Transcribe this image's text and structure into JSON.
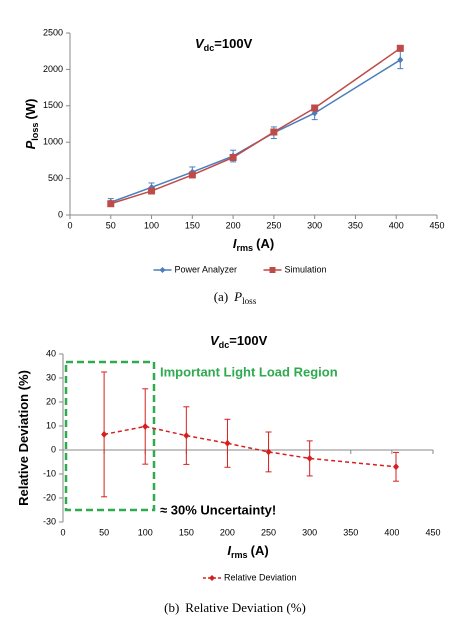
{
  "chart_data": [
    {
      "type": "line",
      "title": {
        "symbol": "V",
        "subscript": "dc",
        "rest": "=100V"
      },
      "xlabel": {
        "symbol": "I",
        "subscript": "rms",
        "unit": "(A)"
      },
      "ylabel": {
        "symbol": "P",
        "subscript": "loss",
        "unit": "(W)"
      },
      "caption": {
        "tag": "(a)",
        "symbol": "P",
        "subscript": "loss"
      },
      "x": [
        50,
        100,
        150,
        200,
        250,
        300,
        405
      ],
      "series": [
        {
          "name": "Power Analyzer",
          "color": "#4a7ebb",
          "marker": "diamond",
          "linestyle": "solid",
          "values": [
            175,
            380,
            590,
            810,
            1130,
            1400,
            2130
          ],
          "errors": [
            50,
            60,
            70,
            80,
            80,
            90,
            120
          ]
        },
        {
          "name": "Simulation",
          "color": "#be4b48",
          "marker": "square",
          "linestyle": "solid",
          "values": [
            155,
            330,
            550,
            790,
            1140,
            1470,
            2290
          ]
        }
      ],
      "xlim": [
        0,
        450
      ],
      "xticks": [
        0,
        50,
        100,
        150,
        200,
        250,
        300,
        350,
        400,
        450
      ],
      "ylim": [
        0,
        2500
      ],
      "yticks": [
        0,
        500,
        1000,
        1500,
        2000,
        2500
      ],
      "grid": false,
      "legend": "below"
    },
    {
      "type": "line",
      "title": {
        "symbol": "V",
        "subscript": "dc",
        "rest": "=100V"
      },
      "xlabel": {
        "symbol": "I",
        "subscript": "rms",
        "unit": "(A)"
      },
      "ylabel": {
        "text": "Relative Deviation (%)"
      },
      "caption": {
        "tag": "(b)",
        "text": "Relative Deviation (%)"
      },
      "annotations": [
        "Important Light Load Region",
        "≈ 30% Uncertainty!"
      ],
      "x": [
        50,
        100,
        150,
        200,
        250,
        300,
        405
      ],
      "series": [
        {
          "name": "Relative Deviation",
          "color": "#d62020",
          "marker": "diamond",
          "linestyle": "dashed",
          "values": [
            6.5,
            9.8,
            6,
            2.8,
            -0.8,
            -3.5,
            -7
          ],
          "errors": [
            26,
            15.7,
            12,
            10,
            8.3,
            7.3,
            6
          ]
        }
      ],
      "xlim": [
        0,
        450
      ],
      "xticks": [
        0,
        50,
        100,
        150,
        200,
        250,
        300,
        350,
        400,
        450
      ],
      "ylim": [
        -30,
        40
      ],
      "yticks": [
        -30,
        -20,
        -10,
        0,
        10,
        20,
        30,
        40
      ],
      "grid": false,
      "legend": "below"
    }
  ]
}
